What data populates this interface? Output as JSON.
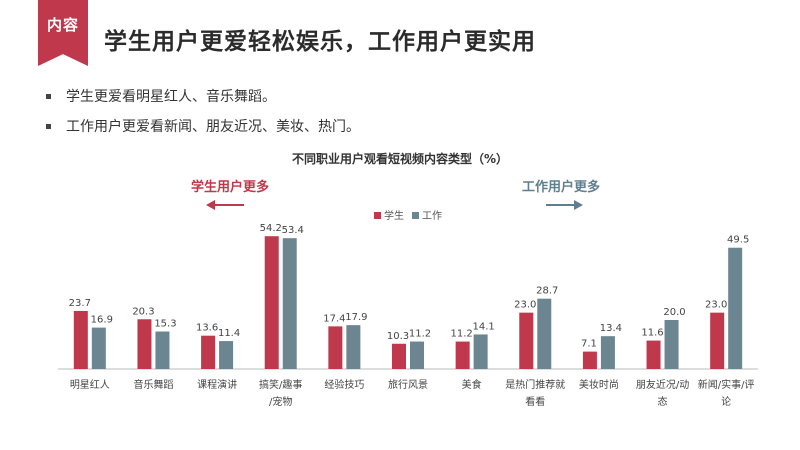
{
  "header": {
    "tag": "内容",
    "title": "学生用户更爱轻松娱乐，工作用户更实用"
  },
  "bullets": [
    "学生更爱看明星红人、音乐舞蹈。",
    "工作用户更爱看新闻、朋友近况、美妆、热门。"
  ],
  "annotations": {
    "left": "学生用户更多",
    "right": "工作用户更多"
  },
  "colors": {
    "accent": "#c0384b",
    "student": "#c0384b",
    "worker": "#6b8591",
    "right_note": "#5f7f8e"
  },
  "chart_data": {
    "type": "bar",
    "title": "不同职业用户观看短视频内容类型（%）",
    "categories": [
      [
        "明星红人"
      ],
      [
        "音乐舞蹈"
      ],
      [
        "课程演讲"
      ],
      [
        "搞笑/趣事",
        "/宠物"
      ],
      [
        "经验技巧"
      ],
      [
        "旅行风景"
      ],
      [
        "美食"
      ],
      [
        "是热门推荐就",
        "看看"
      ],
      [
        "美妆时尚"
      ],
      [
        "朋友近况/动",
        "态"
      ],
      [
        "新闻/实事/评",
        "论"
      ]
    ],
    "series": [
      {
        "name": "学生",
        "values": [
          23.7,
          20.3,
          13.6,
          54.2,
          17.4,
          10.3,
          11.2,
          23.0,
          7.1,
          11.6,
          23.0
        ]
      },
      {
        "name": "工作",
        "values": [
          16.9,
          15.3,
          11.4,
          53.4,
          17.9,
          11.2,
          14.1,
          28.7,
          13.4,
          20.0,
          49.5
        ]
      }
    ],
    "legend": "top-center",
    "grid": false,
    "ylim": [
      0,
      60
    ]
  }
}
